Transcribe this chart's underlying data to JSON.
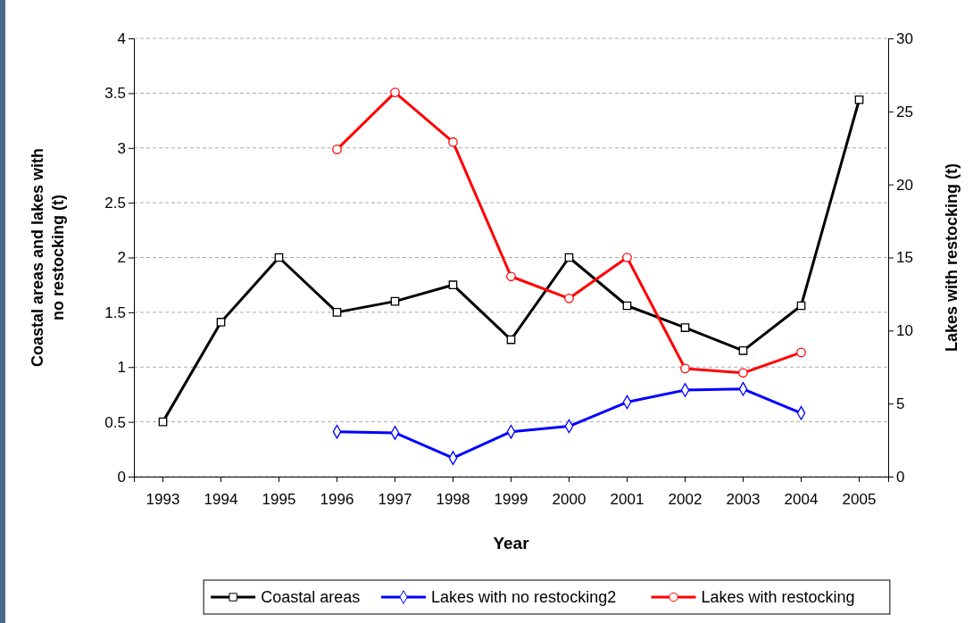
{
  "chart_data": {
    "type": "line",
    "xlabel": "Year",
    "ylabel": "Coastal areas and lakes with no restocking (t)",
    "y2label": "Lakes with restocking (t)",
    "categories": [
      "1993",
      "1994",
      "1995",
      "1996",
      "1997",
      "1998",
      "1999",
      "2000",
      "2001",
      "2002",
      "2003",
      "2004",
      "2005"
    ],
    "ylim": [
      0,
      4
    ],
    "yticks": [
      0,
      0.5,
      1,
      1.5,
      2,
      2.5,
      3,
      3.5,
      4
    ],
    "y2lim": [
      0,
      30
    ],
    "y2ticks": [
      0,
      5,
      10,
      15,
      20,
      25,
      30
    ],
    "grid": "y",
    "legend": "bottom",
    "line_style": "solid",
    "series": [
      {
        "name": "Coastal areas",
        "color": "#000000",
        "marker": "square",
        "values": [
          0.5,
          1.41,
          2.0,
          1.5,
          1.6,
          1.75,
          1.25,
          2.0,
          1.56,
          1.36,
          1.15,
          1.56,
          3.44
        ]
      },
      {
        "name": "Lakes with no restocking2",
        "color": "#0000ff",
        "marker": "diamond",
        "values": [
          null,
          null,
          null,
          0.41,
          0.4,
          0.17,
          0.41,
          0.46,
          0.68,
          0.79,
          0.8,
          0.58,
          null
        ]
      },
      {
        "name": "Lakes with restocking",
        "color": "#ff0000",
        "marker": "circle",
        "axis": "y2",
        "values": [
          null,
          null,
          null,
          22.4,
          26.3,
          22.9,
          13.7,
          12.2,
          15.0,
          7.4,
          7.1,
          8.5,
          null
        ]
      }
    ]
  }
}
